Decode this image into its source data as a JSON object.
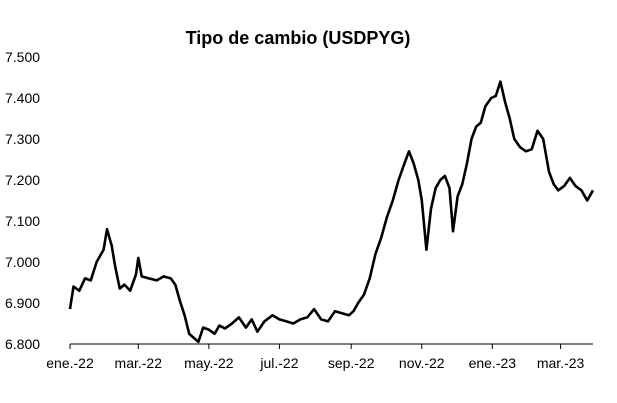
{
  "chart_data": {
    "type": "line",
    "title": "Tipo de cambio (USDPYG)",
    "xlabel": "",
    "ylabel": "",
    "ylim": [
      6800,
      7500
    ],
    "xlim": [
      "2022-01-03",
      "2023-03-31"
    ],
    "grid": false,
    "legend": "none",
    "y_ticks": [
      {
        "value": 7500,
        "label": "7.500"
      },
      {
        "value": 7400,
        "label": "7.400"
      },
      {
        "value": 7300,
        "label": "7.300"
      },
      {
        "value": 7200,
        "label": "7.200"
      },
      {
        "value": 7100,
        "label": "7.100"
      },
      {
        "value": 7000,
        "label": "7.000"
      },
      {
        "value": 6900,
        "label": "6.900"
      },
      {
        "value": 6800,
        "label": "6.800"
      }
    ],
    "x_ticks": [
      {
        "date": "2022-01-03",
        "label": "ene.-22"
      },
      {
        "date": "2022-03-03",
        "label": "mar.-22"
      },
      {
        "date": "2022-05-03",
        "label": "may.-22"
      },
      {
        "date": "2022-07-03",
        "label": "jul.-22"
      },
      {
        "date": "2022-09-03",
        "label": "sep.-22"
      },
      {
        "date": "2022-11-03",
        "label": "nov.-22"
      },
      {
        "date": "2023-01-03",
        "label": "ene.-23"
      },
      {
        "date": "2023-03-03",
        "label": "mar.-23"
      }
    ],
    "series": [
      {
        "color": "#000000",
        "points": [
          [
            "2022-01-03",
            6885
          ],
          [
            "2022-01-06",
            6940
          ],
          [
            "2022-01-11",
            6930
          ],
          [
            "2022-01-16",
            6960
          ],
          [
            "2022-01-21",
            6955
          ],
          [
            "2022-01-26",
            7000
          ],
          [
            "2022-02-01",
            7030
          ],
          [
            "2022-02-04",
            7080
          ],
          [
            "2022-02-08",
            7040
          ],
          [
            "2022-02-11",
            6990
          ],
          [
            "2022-02-15",
            6935
          ],
          [
            "2022-02-19",
            6945
          ],
          [
            "2022-02-24",
            6930
          ],
          [
            "2022-03-01",
            6970
          ],
          [
            "2022-03-03",
            7010
          ],
          [
            "2022-03-06",
            6965
          ],
          [
            "2022-03-12",
            6960
          ],
          [
            "2022-03-19",
            6955
          ],
          [
            "2022-03-25",
            6965
          ],
          [
            "2022-03-31",
            6960
          ],
          [
            "2022-04-04",
            6945
          ],
          [
            "2022-04-08",
            6905
          ],
          [
            "2022-04-12",
            6870
          ],
          [
            "2022-04-16",
            6825
          ],
          [
            "2022-04-20",
            6815
          ],
          [
            "2022-04-24",
            6805
          ],
          [
            "2022-04-28",
            6840
          ],
          [
            "2022-05-03",
            6835
          ],
          [
            "2022-05-08",
            6825
          ],
          [
            "2022-05-12",
            6845
          ],
          [
            "2022-05-17",
            6838
          ],
          [
            "2022-05-23",
            6850
          ],
          [
            "2022-05-29",
            6865
          ],
          [
            "2022-06-04",
            6840
          ],
          [
            "2022-06-09",
            6860
          ],
          [
            "2022-06-14",
            6830
          ],
          [
            "2022-06-20",
            6855
          ],
          [
            "2022-06-27",
            6870
          ],
          [
            "2022-07-03",
            6860
          ],
          [
            "2022-07-09",
            6855
          ],
          [
            "2022-07-15",
            6850
          ],
          [
            "2022-07-21",
            6860
          ],
          [
            "2022-07-27",
            6865
          ],
          [
            "2022-08-02",
            6885
          ],
          [
            "2022-08-08",
            6860
          ],
          [
            "2022-08-14",
            6855
          ],
          [
            "2022-08-20",
            6880
          ],
          [
            "2022-08-26",
            6875
          ],
          [
            "2022-09-01",
            6870
          ],
          [
            "2022-09-05",
            6880
          ],
          [
            "2022-09-09",
            6900
          ],
          [
            "2022-09-14",
            6920
          ],
          [
            "2022-09-19",
            6960
          ],
          [
            "2022-09-24",
            7020
          ],
          [
            "2022-09-29",
            7060
          ],
          [
            "2022-10-04",
            7110
          ],
          [
            "2022-10-09",
            7150
          ],
          [
            "2022-10-14",
            7200
          ],
          [
            "2022-10-19",
            7240
          ],
          [
            "2022-10-23",
            7270
          ],
          [
            "2022-10-27",
            7240
          ],
          [
            "2022-10-31",
            7200
          ],
          [
            "2022-11-03",
            7150
          ],
          [
            "2022-11-07",
            7030
          ],
          [
            "2022-11-11",
            7130
          ],
          [
            "2022-11-15",
            7180
          ],
          [
            "2022-11-19",
            7200
          ],
          [
            "2022-11-23",
            7210
          ],
          [
            "2022-11-27",
            7180
          ],
          [
            "2022-11-30",
            7075
          ],
          [
            "2022-12-04",
            7160
          ],
          [
            "2022-12-08",
            7190
          ],
          [
            "2022-12-12",
            7240
          ],
          [
            "2022-12-16",
            7300
          ],
          [
            "2022-12-20",
            7330
          ],
          [
            "2022-12-24",
            7340
          ],
          [
            "2022-12-28",
            7380
          ],
          [
            "2023-01-02",
            7400
          ],
          [
            "2023-01-06",
            7405
          ],
          [
            "2023-01-10",
            7440
          ],
          [
            "2023-01-14",
            7390
          ],
          [
            "2023-01-18",
            7350
          ],
          [
            "2023-01-22",
            7300
          ],
          [
            "2023-01-27",
            7280
          ],
          [
            "2023-02-01",
            7270
          ],
          [
            "2023-02-06",
            7275
          ],
          [
            "2023-02-11",
            7320
          ],
          [
            "2023-02-16",
            7300
          ],
          [
            "2023-02-21",
            7220
          ],
          [
            "2023-02-25",
            7190
          ],
          [
            "2023-03-01",
            7175
          ],
          [
            "2023-03-06",
            7185
          ],
          [
            "2023-03-11",
            7205
          ],
          [
            "2023-03-16",
            7185
          ],
          [
            "2023-03-21",
            7175
          ],
          [
            "2023-03-26",
            7150
          ],
          [
            "2023-03-31",
            7175
          ]
        ]
      }
    ]
  }
}
